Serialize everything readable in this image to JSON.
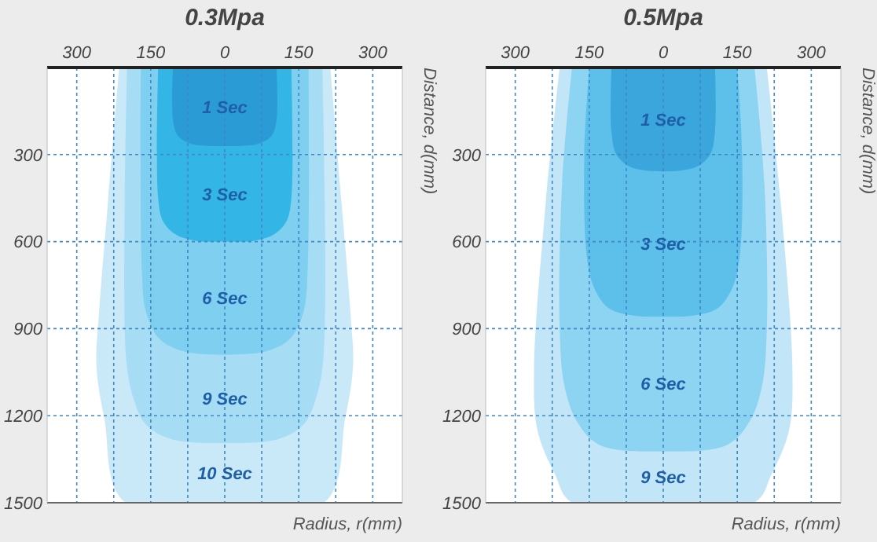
{
  "chart_data": [
    {
      "type": "area",
      "title": "0.3Mpa",
      "xlabel": "Radius, r(mm)",
      "ylabel": "Distance, d(mm)",
      "xlim": [
        -360,
        360
      ],
      "ylim": [
        1500,
        0
      ],
      "xticks": [
        {
          "value": -300,
          "label": "300"
        },
        {
          "value": -225,
          "label": null
        },
        {
          "value": -150,
          "label": "150"
        },
        {
          "value": -75,
          "label": null
        },
        0,
        {
          "value": 75,
          "label": null
        },
        150,
        {
          "value": 225,
          "label": null
        },
        300
      ],
      "yticks": [
        300,
        600,
        900,
        1200,
        1500
      ],
      "grid": true,
      "series": [
        {
          "name": "1 Sec",
          "color": "#2b9bd6",
          "x": [
            -105,
            -105,
            -95,
            -70,
            -35,
            0,
            35,
            70,
            95,
            105,
            105
          ],
          "values": [
            0,
            180,
            235,
            262,
            270,
            271,
            270,
            262,
            235,
            180,
            0
          ]
        },
        {
          "name": "3 Sec",
          "color": "#33b5e5",
          "x": [
            -135,
            -135,
            -125,
            -100,
            -60,
            0,
            60,
            100,
            125,
            135,
            135
          ],
          "values": [
            0,
            450,
            530,
            575,
            597,
            600,
            597,
            575,
            530,
            450,
            0
          ]
        },
        {
          "name": "6 Sec",
          "color": "#7ecff0",
          "x": [
            -170,
            -168,
            -160,
            -135,
            -90,
            0,
            90,
            135,
            160,
            168,
            170
          ],
          "values": [
            0,
            700,
            840,
            930,
            975,
            990,
            975,
            930,
            840,
            700,
            0
          ]
        },
        {
          "name": "9 Sec",
          "color": "#a6dcf4",
          "x": [
            -198,
            -200,
            -185,
            -160,
            -110,
            0,
            110,
            160,
            185,
            200,
            198
          ],
          "values": [
            0,
            1000,
            1140,
            1230,
            1280,
            1294,
            1280,
            1230,
            1140,
            1000,
            0
          ]
        },
        {
          "name": "10 Sec",
          "color": "#c9e9f8",
          "x": [
            -214,
            -238,
            -255,
            -260,
            -244,
            -201,
            201,
            244,
            260,
            255,
            238,
            214
          ],
          "values": [
            0,
            490,
            850,
            1030,
            1210,
            1500,
            1500,
            1210,
            1030,
            850,
            490,
            0
          ]
        }
      ]
    },
    {
      "type": "area",
      "title": "0.5Mpa",
      "xlabel": "Radius, r(mm)",
      "ylabel": "Distance, d(mm)",
      "xlim": [
        -360,
        360
      ],
      "ylim": [
        1500,
        0
      ],
      "xticks": [
        {
          "value": -300,
          "label": "300"
        },
        {
          "value": -225,
          "label": null
        },
        {
          "value": -150,
          "label": "150"
        },
        {
          "value": -75,
          "label": null
        },
        0,
        {
          "value": 75,
          "label": null
        },
        150,
        {
          "value": 225,
          "label": null
        },
        300
      ],
      "yticks": [
        300,
        600,
        900,
        1200,
        1500
      ],
      "grid": true,
      "series": [
        {
          "name": "1 Sec",
          "color": "#3aa6dc",
          "x": [
            -105,
            -105,
            -95,
            -70,
            -35,
            0,
            35,
            70,
            95,
            105,
            105
          ],
          "values": [
            0,
            220,
            300,
            340,
            355,
            358,
            355,
            340,
            300,
            220,
            0
          ]
        },
        {
          "name": "3 Sec",
          "color": "#5cc0ea",
          "x": [
            -150,
            -160,
            -155,
            -140,
            -110,
            -60,
            0,
            60,
            110,
            140,
            155,
            160,
            150
          ],
          "values": [
            0,
            300,
            650,
            760,
            830,
            855,
            858,
            855,
            830,
            760,
            650,
            300,
            0
          ]
        },
        {
          "name": "6 Sec",
          "color": "#8dd3f2",
          "x": [
            -185,
            -205,
            -210,
            -200,
            -175,
            -130,
            0,
            130,
            175,
            200,
            210,
            205,
            185
          ],
          "values": [
            0,
            400,
            900,
            1100,
            1220,
            1300,
            1323,
            1300,
            1220,
            1100,
            900,
            400,
            0
          ]
        },
        {
          "name": "9 Sec",
          "color": "#c2e6f8",
          "x": [
            -210,
            -240,
            -262,
            -255,
            -220,
            -184,
            184,
            220,
            255,
            262,
            240,
            210
          ],
          "values": [
            0,
            500,
            1050,
            1250,
            1400,
            1500,
            1500,
            1400,
            1250,
            1050,
            500,
            0
          ]
        }
      ]
    }
  ]
}
